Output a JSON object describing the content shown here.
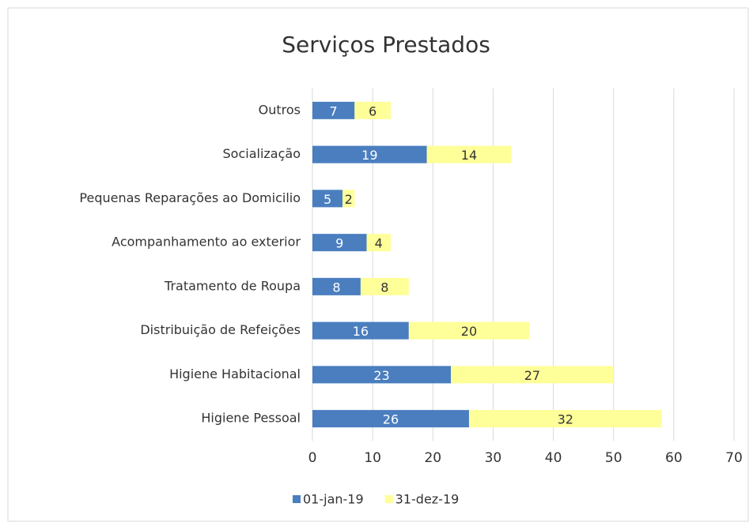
{
  "chart_data": {
    "type": "stacked-bar-horizontal",
    "title": "Serviços Prestados",
    "categories": [
      "Outros",
      "Socialização",
      "Pequenas Reparações ao Domicilio",
      "Acompanhamento ao exterior",
      "Tratamento de Roupa",
      "Distribuição de Refeições",
      "Higiene Habitacional",
      "Higiene Pessoal"
    ],
    "series": [
      {
        "name": "01-jan-19",
        "color": "#4a7ebf",
        "label_color": "#ffffff",
        "values": [
          7,
          19,
          5,
          9,
          8,
          16,
          23,
          26
        ]
      },
      {
        "name": "31-dez-19",
        "color": "#ffff99",
        "label_color": "#333333",
        "values": [
          6,
          14,
          2,
          4,
          8,
          20,
          27,
          32
        ]
      }
    ],
    "xlim": [
      0,
      70
    ],
    "xticks": [
      0,
      10,
      20,
      30,
      40,
      50,
      60,
      70
    ],
    "grid": true,
    "legend": "bottom"
  }
}
